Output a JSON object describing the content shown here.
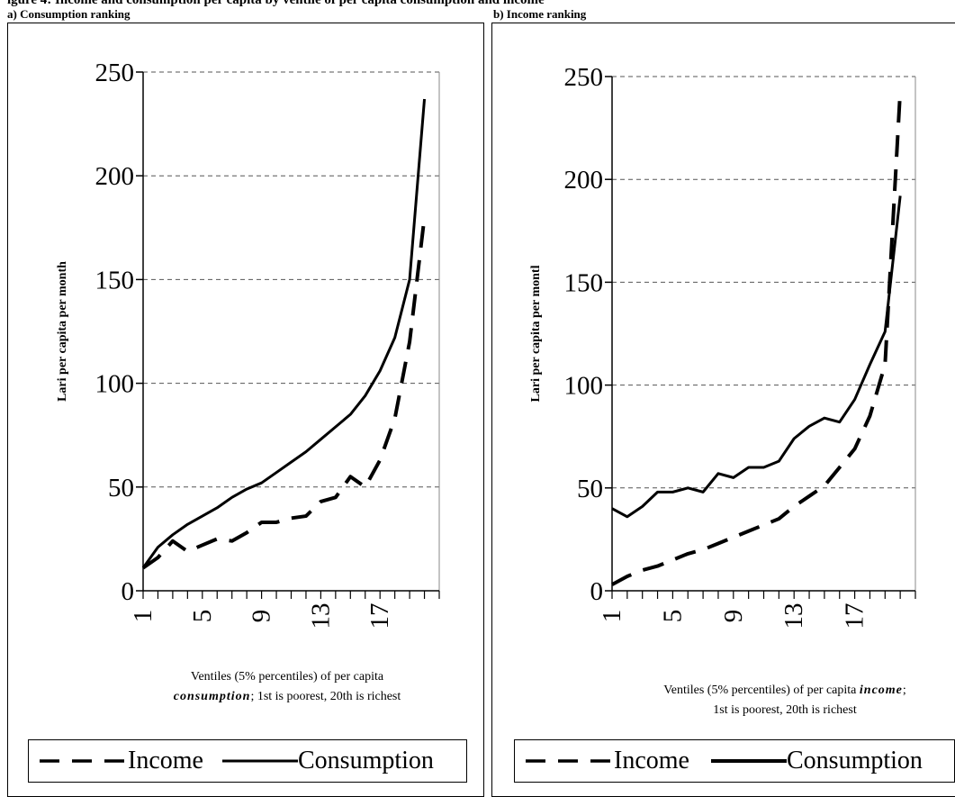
{
  "figure": {
    "title": "igure 4: Income and consumption per capita by ventile of per capita consumption and income"
  },
  "colors": {
    "line": "#000000",
    "grid": "#555555",
    "background": "#ffffff"
  },
  "panels": [
    {
      "label": "a) Consumption ranking",
      "ylabel": "Lari per capita per month",
      "xlabel_part1": "Ventiles (5% percentiles) of per capita",
      "xlabel_emph": "consumption",
      "xlabel_part2": "; 1st is poorest, 20th is richest",
      "legend": {
        "dashed": "Income",
        "solid": "Consumption"
      }
    },
    {
      "label": "b) Income ranking",
      "ylabel": "Lari per capita per montl",
      "xlabel_part1": "Ventiles (5% percentiles) of per capita",
      "xlabel_emph": "income",
      "xlabel_part2": ";",
      "xlabel_line2": "1st is poorest, 20th is richest",
      "legend": {
        "dashed": "Income",
        "solid": "Consumption"
      }
    }
  ],
  "chart_data": [
    {
      "type": "line",
      "title": "a) Consumption ranking",
      "ylabel": "Lari per capita per month",
      "xlabel": "Ventiles (5% percentiles) of per capita consumption; 1st is poorest, 20th is richest",
      "x": [
        1,
        2,
        3,
        4,
        5,
        6,
        7,
        8,
        9,
        10,
        11,
        12,
        13,
        14,
        15,
        16,
        17,
        18,
        19,
        20
      ],
      "x_tick_labels": [
        "1",
        "5",
        "9",
        "13",
        "17"
      ],
      "y_ticks": [
        0,
        50,
        100,
        150,
        200,
        250
      ],
      "ylim": [
        0,
        250
      ],
      "grid": "horizontal dashed",
      "legend_position": "bottom",
      "series": [
        {
          "name": "Income",
          "style": "dashed",
          "values": [
            11,
            16,
            24,
            19,
            22,
            25,
            24,
            28,
            33,
            33,
            35,
            36,
            43,
            45,
            55,
            50,
            63,
            83,
            120,
            180
          ]
        },
        {
          "name": "Consumption",
          "style": "solid",
          "values": [
            11,
            21,
            27,
            32,
            36,
            40,
            45,
            49,
            52,
            57,
            62,
            67,
            73,
            79,
            85,
            94,
            106,
            122,
            150,
            237
          ]
        }
      ]
    },
    {
      "type": "line",
      "title": "b) Income ranking",
      "ylabel": "Lari per capita per montl",
      "xlabel": "Ventiles (5% percentiles) of per capita income; 1st is poorest, 20th is richest",
      "x": [
        1,
        2,
        3,
        4,
        5,
        6,
        7,
        8,
        9,
        10,
        11,
        12,
        13,
        14,
        15,
        16,
        17,
        18,
        19,
        20
      ],
      "x_tick_labels": [
        "1",
        "5",
        "9",
        "13",
        "17"
      ],
      "y_ticks": [
        0,
        50,
        100,
        150,
        200,
        250
      ],
      "ylim": [
        0,
        250
      ],
      "grid": "horizontal dashed",
      "legend_position": "bottom",
      "series": [
        {
          "name": "Income",
          "style": "dashed",
          "values": [
            3,
            7,
            10,
            12,
            15,
            18,
            20,
            23,
            26,
            29,
            32,
            35,
            41,
            46,
            51,
            60,
            69,
            85,
            110,
            243
          ]
        },
        {
          "name": "Consumption",
          "style": "solid",
          "values": [
            40,
            36,
            41,
            48,
            48,
            50,
            48,
            57,
            55,
            60,
            60,
            63,
            74,
            80,
            84,
            82,
            93,
            110,
            126,
            192
          ]
        }
      ]
    }
  ]
}
